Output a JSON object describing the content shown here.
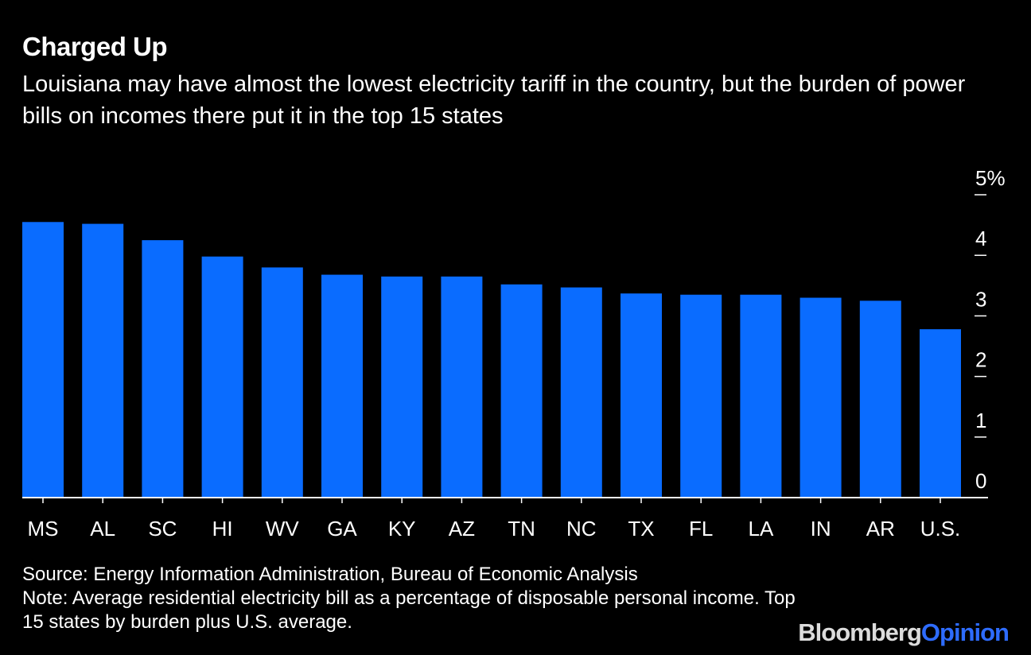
{
  "header": {
    "title": "Charged Up",
    "subtitle": "Louisiana may have almost the lowest electricity tariff in the country, but the burden of power bills on incomes there put it in the top 15 states"
  },
  "chart_data": {
    "type": "bar",
    "title": "Charged Up",
    "subtitle": "Louisiana may have almost the lowest electricity tariff in the country, but the burden of power bills on incomes there put it in the top 15 states",
    "categories": [
      "MS",
      "AL",
      "SC",
      "HI",
      "WV",
      "GA",
      "KY",
      "AZ",
      "TN",
      "NC",
      "TX",
      "FL",
      "LA",
      "IN",
      "AR",
      "U.S."
    ],
    "values": [
      4.55,
      4.52,
      4.25,
      3.98,
      3.8,
      3.68,
      3.65,
      3.65,
      3.52,
      3.47,
      3.37,
      3.35,
      3.35,
      3.3,
      3.25,
      2.78
    ],
    "yticks": [
      "0",
      "1",
      "2",
      "3",
      "4",
      "5%"
    ],
    "ylim": [
      0,
      5
    ],
    "xlabel": "",
    "ylabel": "",
    "grid": false,
    "axis_side": "right"
  },
  "footer": {
    "source": "Source: Energy Information Administration, Bureau of Economic Analysis",
    "note": "Note: Average residential electricity bill as a percentage of disposable personal income. Top 15 states by burden plus U.S. average."
  },
  "logo": {
    "brand": "Bloomberg",
    "product": "Opinion"
  },
  "colors": {
    "bar": "#0a6cff",
    "background": "#000000",
    "text": "#ffffff",
    "axis": "#ffffff"
  }
}
